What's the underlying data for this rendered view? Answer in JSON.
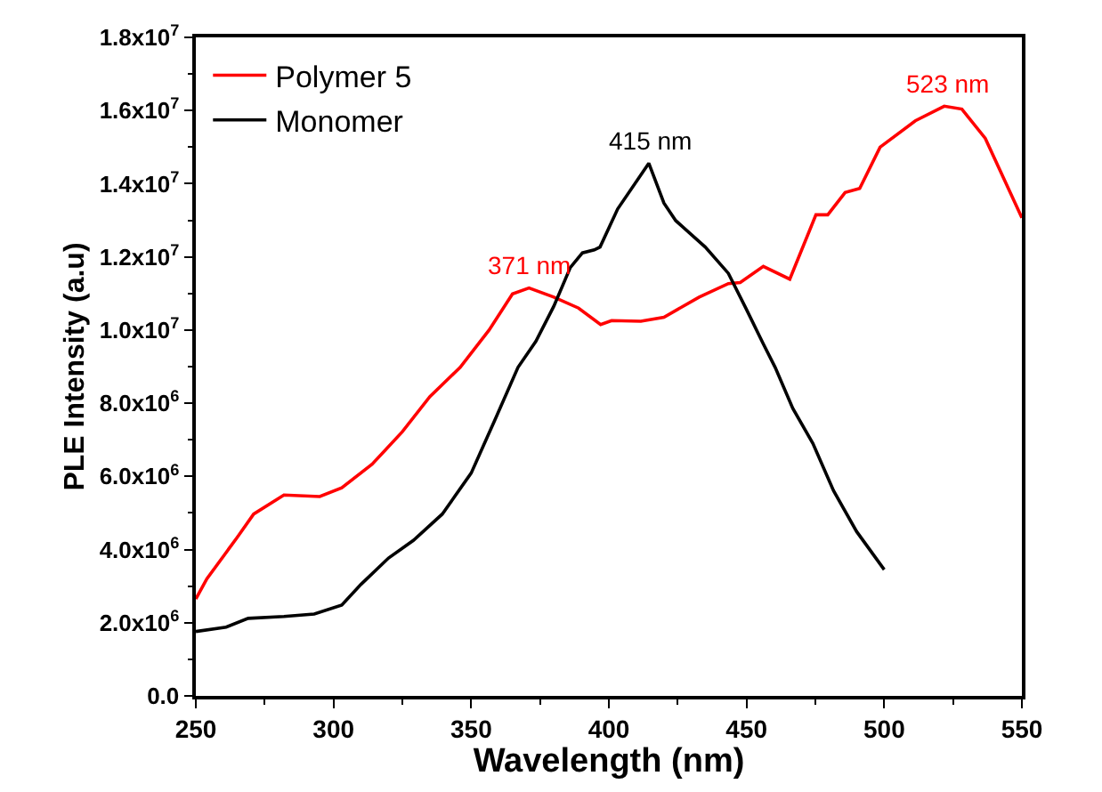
{
  "chart_data": {
    "type": "line",
    "xlabel": "Wavelength (nm)",
    "ylabel": "PLE Intensity (a.u)",
    "xlim": [
      250,
      550
    ],
    "xticks": [
      250,
      300,
      350,
      400,
      450,
      500,
      550
    ],
    "ylim": [
      0,
      18000000
    ],
    "yticks": [
      {
        "value": 0,
        "label": "0.0"
      },
      {
        "value": 2000000,
        "label": "2.0x10$^{6}$"
      },
      {
        "value": 4000000,
        "label": "4.0x10$^{6}$"
      },
      {
        "value": 6000000,
        "label": "6.0x10$^{6}$"
      },
      {
        "value": 8000000,
        "label": "8.0x10$^{6}$"
      },
      {
        "value": 10000000,
        "label": "1.0x10$^{7}$"
      },
      {
        "value": 12000000,
        "label": "1.2x10$^{7}$"
      },
      {
        "value": 14000000,
        "label": "1.4x10$^{7}$"
      },
      {
        "value": 16000000,
        "label": "1.6x10$^{7}$"
      },
      {
        "value": 18000000,
        "label": "1.8x10$^{7}$"
      }
    ],
    "legend": "top left",
    "marker": "none",
    "line_style": "solid",
    "series": [
      {
        "name": "Polymer 5",
        "color": "#ff0000",
        "x": [
          250,
          254,
          265,
          271,
          282,
          295,
          303,
          314,
          325,
          335,
          346,
          356.5,
          365,
          371,
          380,
          389,
          397,
          401,
          411.6,
          420,
          432.8,
          443.4,
          447.7,
          456.1,
          465.7,
          475.2,
          479.5,
          485.8,
          491.1,
          498.5,
          511.3,
          521.8,
          528.2,
          536.7,
          550
        ],
        "values": [
          2650000,
          3200000,
          4330000,
          4970000,
          5490000,
          5450000,
          5690000,
          6330000,
          7220000,
          8180000,
          8980000,
          10000000,
          10990000,
          11150000,
          10900000,
          10600000,
          10150000,
          10260000,
          10240000,
          10350000,
          10900000,
          11270000,
          11300000,
          11740000,
          11390000,
          13150000,
          13150000,
          13760000,
          13870000,
          15000000,
          15720000,
          16120000,
          16040000,
          15240000,
          13070000
        ]
      },
      {
        "name": "Monomer",
        "color": "#000000",
        "x": [
          250,
          261,
          269,
          282,
          293,
          303,
          310,
          320,
          329,
          339.5,
          350,
          358.6,
          367,
          373.5,
          380,
          386,
          390.4,
          394.7,
          396.8,
          403.2,
          414.5,
          420,
          424.3,
          435,
          443.4,
          449.8,
          456.1,
          460.4,
          466.8,
          474.1,
          481.6,
          490,
          500
        ],
        "values": [
          1760000,
          1880000,
          2120000,
          2170000,
          2240000,
          2480000,
          3050000,
          3770000,
          4250000,
          4970000,
          6090000,
          7540000,
          8980000,
          9690000,
          10650000,
          11710000,
          12110000,
          12190000,
          12270000,
          13310000,
          14560000,
          13470000,
          12990000,
          12270000,
          11550000,
          10590000,
          9620000,
          8980000,
          7860000,
          6900000,
          5610000,
          4490000,
          3450000
        ]
      }
    ],
    "annotations": [
      {
        "text": "371 nm",
        "x": 371,
        "y": 11150000
      },
      {
        "text": "415 nm",
        "x": 415,
        "y": 14560000
      },
      {
        "text": "523 nm",
        "x": 523,
        "y": 16120000
      }
    ]
  }
}
